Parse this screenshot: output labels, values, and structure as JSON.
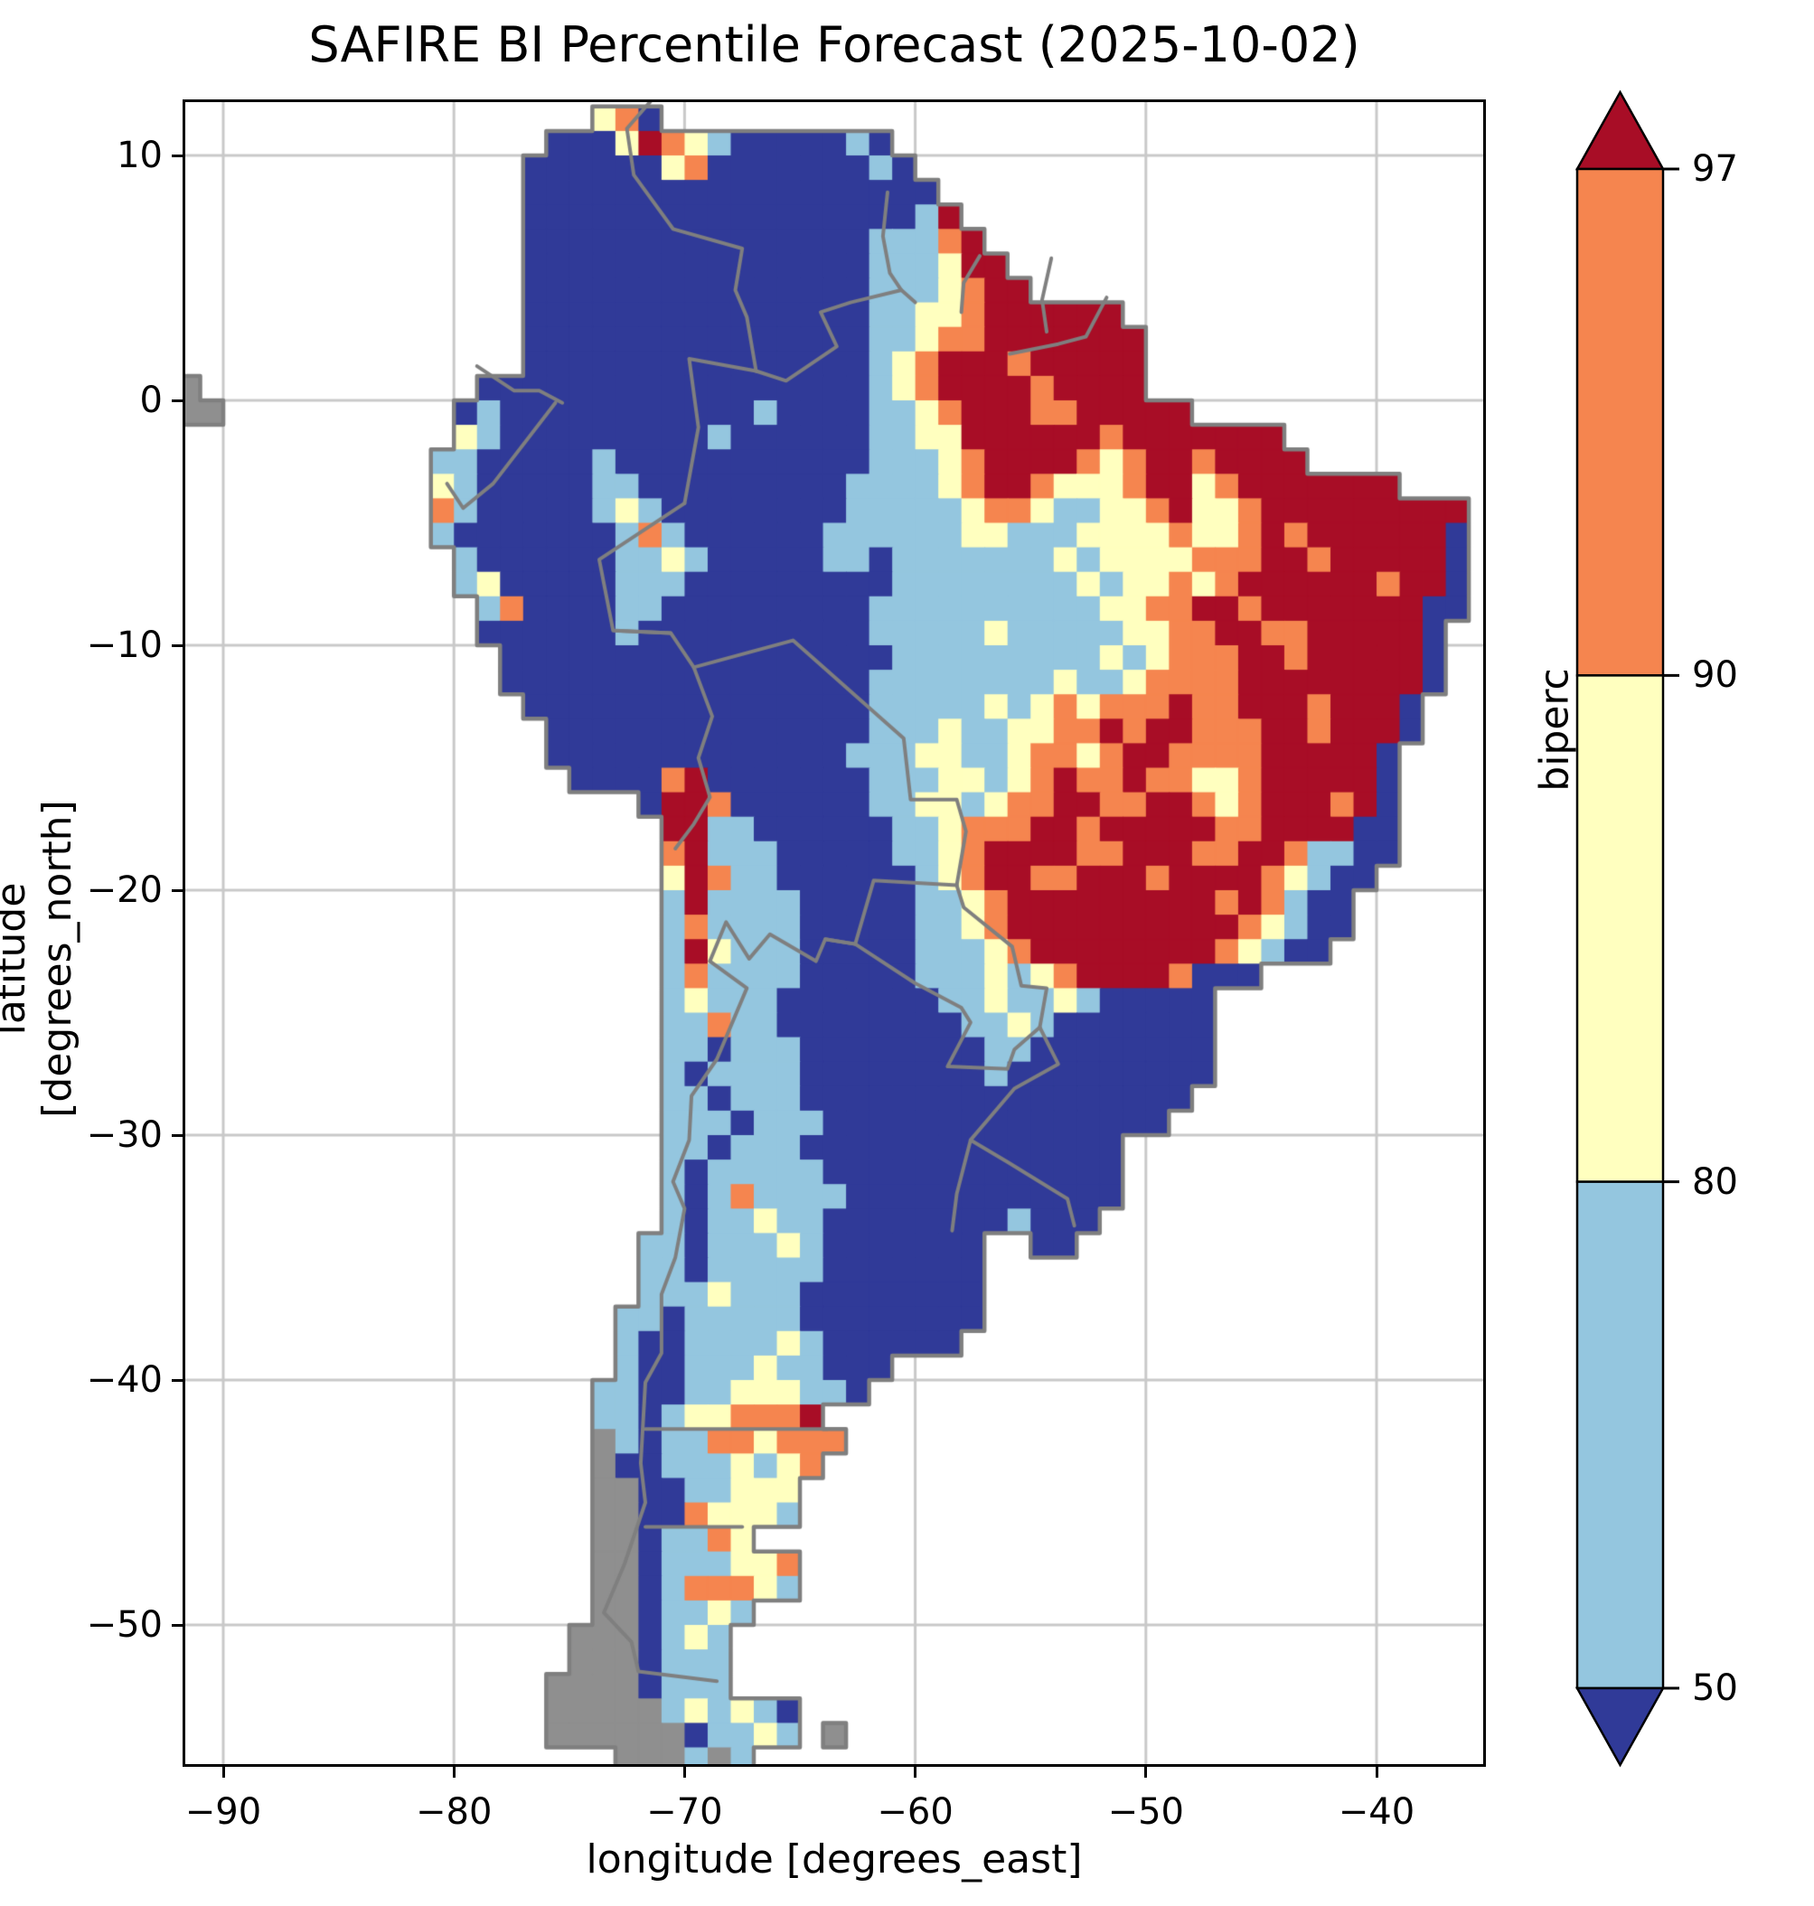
{
  "title": "SAFIRE BI Percentile Forecast (2025-10-02)",
  "axes": {
    "xlabel": "longitude [degrees_east]",
    "ylabel": "latitude [degrees_north]",
    "x_ticks": [
      {
        "label": "−90",
        "lon": -90
      },
      {
        "label": "−80",
        "lon": -80
      },
      {
        "label": "−70",
        "lon": -70
      },
      {
        "label": "−60",
        "lon": -60
      },
      {
        "label": "−50",
        "lon": -50
      },
      {
        "label": "−40",
        "lon": -40
      }
    ],
    "y_ticks": [
      {
        "label": "10",
        "lat": 10
      },
      {
        "label": "0",
        "lat": 0
      },
      {
        "label": "−10",
        "lat": -10
      },
      {
        "label": "−20",
        "lat": -20
      },
      {
        "label": "−30",
        "lat": -30
      },
      {
        "label": "−40",
        "lat": -40
      },
      {
        "label": "−50",
        "lat": -50
      }
    ],
    "grid_color": "#c9c9c9",
    "frame_color": "#000000"
  },
  "colorbar": {
    "label": "biperc",
    "tick_labels": [
      "97",
      "90",
      "80",
      "50"
    ],
    "levels": [
      50,
      80,
      90,
      97
    ],
    "segment_colors_top_to_bottom": [
      "#f5854f",
      "#ffffbf",
      "#94c6df"
    ],
    "over_color": "#a80d26",
    "under_color": "#303a98",
    "outline_color": "#000000"
  },
  "legend_semantics": {
    "navy": "biperc < 50",
    "lightblue": "50–80",
    "yellow": "80–90",
    "orange": "90–97",
    "red": "> 97"
  },
  "palette": {
    "n": "#303a98",
    "b": "#94c6df",
    "y": "#ffffbf",
    "o": "#f5854f",
    "r": "#a80d26",
    "g": "#8f8f8f"
  },
  "map_style": {
    "coast_color": "#7f7f7f",
    "border_color": "#7f7f7f",
    "ocean_color": "#ffffff"
  },
  "raster": {
    "comment": "1-degree cells, cols lon -92..-36, rows lat 12..-56; .=ocean n=navy b=lightblue y=yellow o=orange r=red g=gray-nodata",
    "lon_start": -92,
    "lat_start": 12,
    "rows": [
      "..................yon...................................",
      "................nnnyroybnnnnnbn.........................",
      "...............nnnnnnyonnnnnnnbn........................",
      "...............nnnnnnnnnnnnnnnnnn.......................",
      "...............nnnnnnnnnnnnnnnnnbr......................",
      "...............nnnnnnnnnnnnnnnbbbor.....................",
      "...............nnnnnnnnnnnnnnnbbbyrr....................",
      "...............nnnnnnnnnnnnnnnbbbyorr...................",
      "...............nnnnnnnnnnnnnnnbbyyorrrrrr...............",
      "...............nnnnnnnnnnnnnnnbbyoorrrrrrr..............",
      "...............nnnnnnnnnnnnnnnbyorrrorrrrr..............",
      "g............nnnnnnnnnnnnnnnnnbyorrrrorrrr..............",
      "gg..........nbnnnnnnnnnnnbnnnnbbyorrroorrrrr............",
      "............ybnnnnnnnnnbnnnnnnbbyyrrrrrrorrrrrrr........",
      "...........bbnnnnnbnnnnnnnnnnnbbbyorrrroyorrorrrr.......",
      "...........ybnnnnnbbnnnnnnnnnbbbbyorroyyyorryorrrrrrr...",
      "...........obnnnnnbybnnnnnnnnbbbbbyooybbyyoryyorrrrrrrrr",
      "...........bnnnnnnnbobnnnnnnbbbbbbyybbbyyyyoyyororrrrrrn",
      "............bnnnnnnbbybnnnnnbbnbbbbbbbybyyyyooorrorrrrrn",
      "............bynnnnnbbbnnnnnnnnnbbbbbbbbybyyoyorrrrrrorrn",
      ".............bonnnnbbnnnnnnnnnbbbbbbbbbbyyoorrorrrrrrrnn",
      ".............nnnnnnbnnnnnnnnnnbbbbbybbbbbyyoorroorrrrrn.",
      "..............nnnnnnnnnnnnnnnnnbbbbbbbbbybyooorrorrrrrn.",
      "..............nnnnnnnnnnnnnnnnbbbbbbbbybbyoooorrrrrrrrn.",
      "...............nnnnnnnnnnnnnnnbbbbbybyoyoooroorrrorrrn..",
      "................nnnnnnnnnnnnnnbbbybbyyoororrooorrorrrn..",
      "................nnnnnnnnnnnnnbbbyybbyooyorroooorrrrrn...",
      ".................nnnnornnnnnnnbbbyybyoroorooyyorrrrrn...",
      "....................nrronnnnnnbbyybyoorroorroyorrrorn...",
      ".....................rrbbnnnnnnbbyooorrorrrrroorrrrnn...",
      ".....................orbbbnnnnnbbyorrrroorrroorrobbnn...",
      ".....................yrobbnnnnnnbyorroorrrorrrroybnn....",
      ".....................brbbbbnnnnnbbyorrrrrrrrrorobnn.....",
      ".....................bobbbbnnnnnbbyorrrrrrrrrroybnn.....",
      ".....................brybbbnnnnnbbbyorrrrrrrroybnn......",
      ".....................bobbbbnnnnnbbbybyorrrronnn.........",
      ".....................bybbbnnnnnnnbbybbybnnnnn...........",
      ".....................bbobbnnnnnnnnbbybnnnnnnn...........",
      ".....................bbnbbbnnnnnnnnbbnnnnnnnn...........",
      ".....................bnbbbbnnnnnnnnbnnnnnnnnn...........",
      ".....................bbnbbbnnnnnnnnnnnnnnnnn............",
      ".....................bbbnbbbnnnnnnnnnnnnnnn.............",
      ".....................bbnbbbnnnnnnnnnnnnnn...............",
      ".....................bnbbbbbnnnnnnnnnnnnn...............",
      ".....................bnbobbbbnnnnnnnnnnnn...............",
      ".....................bnbbybbnnnnnnnnbnnn................",
      "....................bbnbbbybnnnnnnn..nn.................",
      "....................bbnbbbbbnnnnnnn.....................",
      "....................bbbybbbnnnnnnnn.....................",
      "...................bbnbbbbbnnnnnnnn.....................",
      "...................bnnbbbbybnnnnnn......................",
      "...................bnnbbbybbnnn.........................",
      "..................bbnnbbyyybbn..........................",
      "..................bbnbyyooor............................",
      "..................gbnbbooyooo...........................",
      "..................gnnbbbybyo............................",
      "..................ggnnbbyyy.............................",
      "..................ggnnoyyyb.............................",
      "..................ggnbboy...............................",
      "..................ggnbbbyyo.............................",
      "..................ggnboooyb.............................",
      "..................ggnbbyb...............................",
      ".................gggnbyb................................",
      ".................gggnbbb................................",
      "................ggggnbbb................................",
      "................gggggbybybn.............................",
      "................ggggggnbbyb.g...........................",
      "...................gggbgb..............................."
    ]
  },
  "map_borders": [
    [
      [
        -71.3,
        12.4
      ],
      [
        -72.5,
        11.1
      ],
      [
        -72.2,
        9.2
      ],
      [
        -70.5,
        7.0
      ],
      [
        -67.5,
        6.2
      ],
      [
        -67.8,
        4.5
      ],
      [
        -67.3,
        3.4
      ],
      [
        -66.9,
        1.2
      ]
    ],
    [
      [
        -79.0,
        1.4
      ],
      [
        -77.4,
        0.4
      ],
      [
        -76.3,
        0.4
      ],
      [
        -75.3,
        -0.1
      ]
    ],
    [
      [
        -80.3,
        -3.4
      ],
      [
        -79.6,
        -4.4
      ],
      [
        -78.3,
        -3.4
      ],
      [
        -75.6,
        -0.1
      ]
    ],
    [
      [
        -66.9,
        1.2
      ],
      [
        -69.8,
        1.7
      ],
      [
        -69.4,
        -1.1
      ],
      [
        -70.0,
        -4.2
      ]
    ],
    [
      [
        -70.0,
        -4.2
      ],
      [
        -73.7,
        -6.5
      ],
      [
        -73.1,
        -9.4
      ],
      [
        -70.6,
        -9.5
      ],
      [
        -69.6,
        -10.9
      ]
    ],
    [
      [
        -69.6,
        -10.9
      ],
      [
        -68.8,
        -12.9
      ],
      [
        -69.4,
        -14.6
      ],
      [
        -68.9,
        -16.2
      ],
      [
        -69.6,
        -17.3
      ],
      [
        -70.4,
        -18.3
      ]
    ],
    [
      [
        -69.6,
        -10.9
      ],
      [
        -65.3,
        -9.8
      ],
      [
        -60.5,
        -13.8
      ],
      [
        -60.2,
        -16.3
      ],
      [
        -58.2,
        -16.3
      ],
      [
        -57.8,
        -17.6
      ],
      [
        -58.2,
        -19.8
      ]
    ],
    [
      [
        -58.2,
        -19.8
      ],
      [
        -61.8,
        -19.6
      ],
      [
        -62.6,
        -22.2
      ],
      [
        -63.9,
        -22.0
      ],
      [
        -64.3,
        -22.9
      ],
      [
        -66.3,
        -21.8
      ],
      [
        -67.2,
        -22.8
      ],
      [
        -68.2,
        -21.3
      ],
      [
        -68.9,
        -22.9
      ]
    ],
    [
      [
        -58.2,
        -19.8
      ],
      [
        -57.9,
        -20.7
      ],
      [
        -55.8,
        -22.3
      ],
      [
        -55.4,
        -23.9
      ],
      [
        -54.3,
        -24.0
      ],
      [
        -54.6,
        -25.6
      ]
    ],
    [
      [
        -62.6,
        -22.2
      ],
      [
        -60.0,
        -23.8
      ],
      [
        -58.0,
        -24.8
      ],
      [
        -57.6,
        -25.4
      ],
      [
        -58.6,
        -27.2
      ],
      [
        -56.0,
        -27.3
      ],
      [
        -55.7,
        -26.5
      ],
      [
        -54.6,
        -25.6
      ]
    ],
    [
      [
        -54.6,
        -25.6
      ],
      [
        -53.8,
        -27.1
      ],
      [
        -55.7,
        -28.1
      ],
      [
        -57.6,
        -30.2
      ],
      [
        -56.0,
        -31.1
      ],
      [
        -53.4,
        -32.6
      ],
      [
        -53.1,
        -33.7
      ]
    ],
    [
      [
        -57.6,
        -30.2
      ],
      [
        -58.2,
        -32.4
      ],
      [
        -58.4,
        -33.9
      ]
    ],
    [
      [
        -68.9,
        -22.9
      ],
      [
        -67.3,
        -24.0
      ],
      [
        -68.6,
        -26.9
      ],
      [
        -69.7,
        -28.4
      ],
      [
        -69.8,
        -30.2
      ],
      [
        -70.5,
        -31.9
      ],
      [
        -70.0,
        -33.0
      ],
      [
        -70.4,
        -35.0
      ],
      [
        -71.0,
        -36.5
      ],
      [
        -71.0,
        -38.9
      ],
      [
        -71.7,
        -40.1
      ],
      [
        -71.9,
        -43.4
      ],
      [
        -71.7,
        -45.0
      ],
      [
        -72.6,
        -47.5
      ],
      [
        -73.5,
        -49.5
      ],
      [
        -72.3,
        -50.7
      ],
      [
        -72.0,
        -51.9
      ],
      [
        -68.6,
        -52.3
      ]
    ],
    [
      [
        -61.2,
        8.5
      ],
      [
        -61.4,
        6.7
      ],
      [
        -61.1,
        5.2
      ],
      [
        -60.6,
        4.5
      ],
      [
        -60.0,
        4.0
      ]
    ],
    [
      [
        -60.6,
        4.5
      ],
      [
        -62.8,
        4.0
      ],
      [
        -64.1,
        3.6
      ],
      [
        -63.4,
        2.2
      ],
      [
        -65.6,
        0.8
      ],
      [
        -66.9,
        1.2
      ]
    ],
    [
      [
        -57.2,
        5.9
      ],
      [
        -57.9,
        4.8
      ],
      [
        -58.0,
        3.6
      ]
    ],
    [
      [
        -54.1,
        5.8
      ],
      [
        -54.5,
        4.1
      ],
      [
        -54.3,
        2.8
      ]
    ],
    [
      [
        -51.7,
        4.2
      ],
      [
        -52.6,
        2.6
      ],
      [
        -53.8,
        2.3
      ],
      [
        -55.9,
        1.9
      ]
    ],
    [
      [
        -71.7,
        -42.0
      ],
      [
        -63.8,
        -42.0
      ]
    ],
    [
      [
        -71.7,
        -46.0
      ],
      [
        -67.5,
        -46.0
      ]
    ],
    [
      [
        -73.0,
        -9.4
      ],
      [
        -70.6,
        -9.5
      ]
    ],
    [
      [
        -62.6,
        -22.2
      ],
      [
        -63.9,
        -22.0
      ]
    ]
  ]
}
